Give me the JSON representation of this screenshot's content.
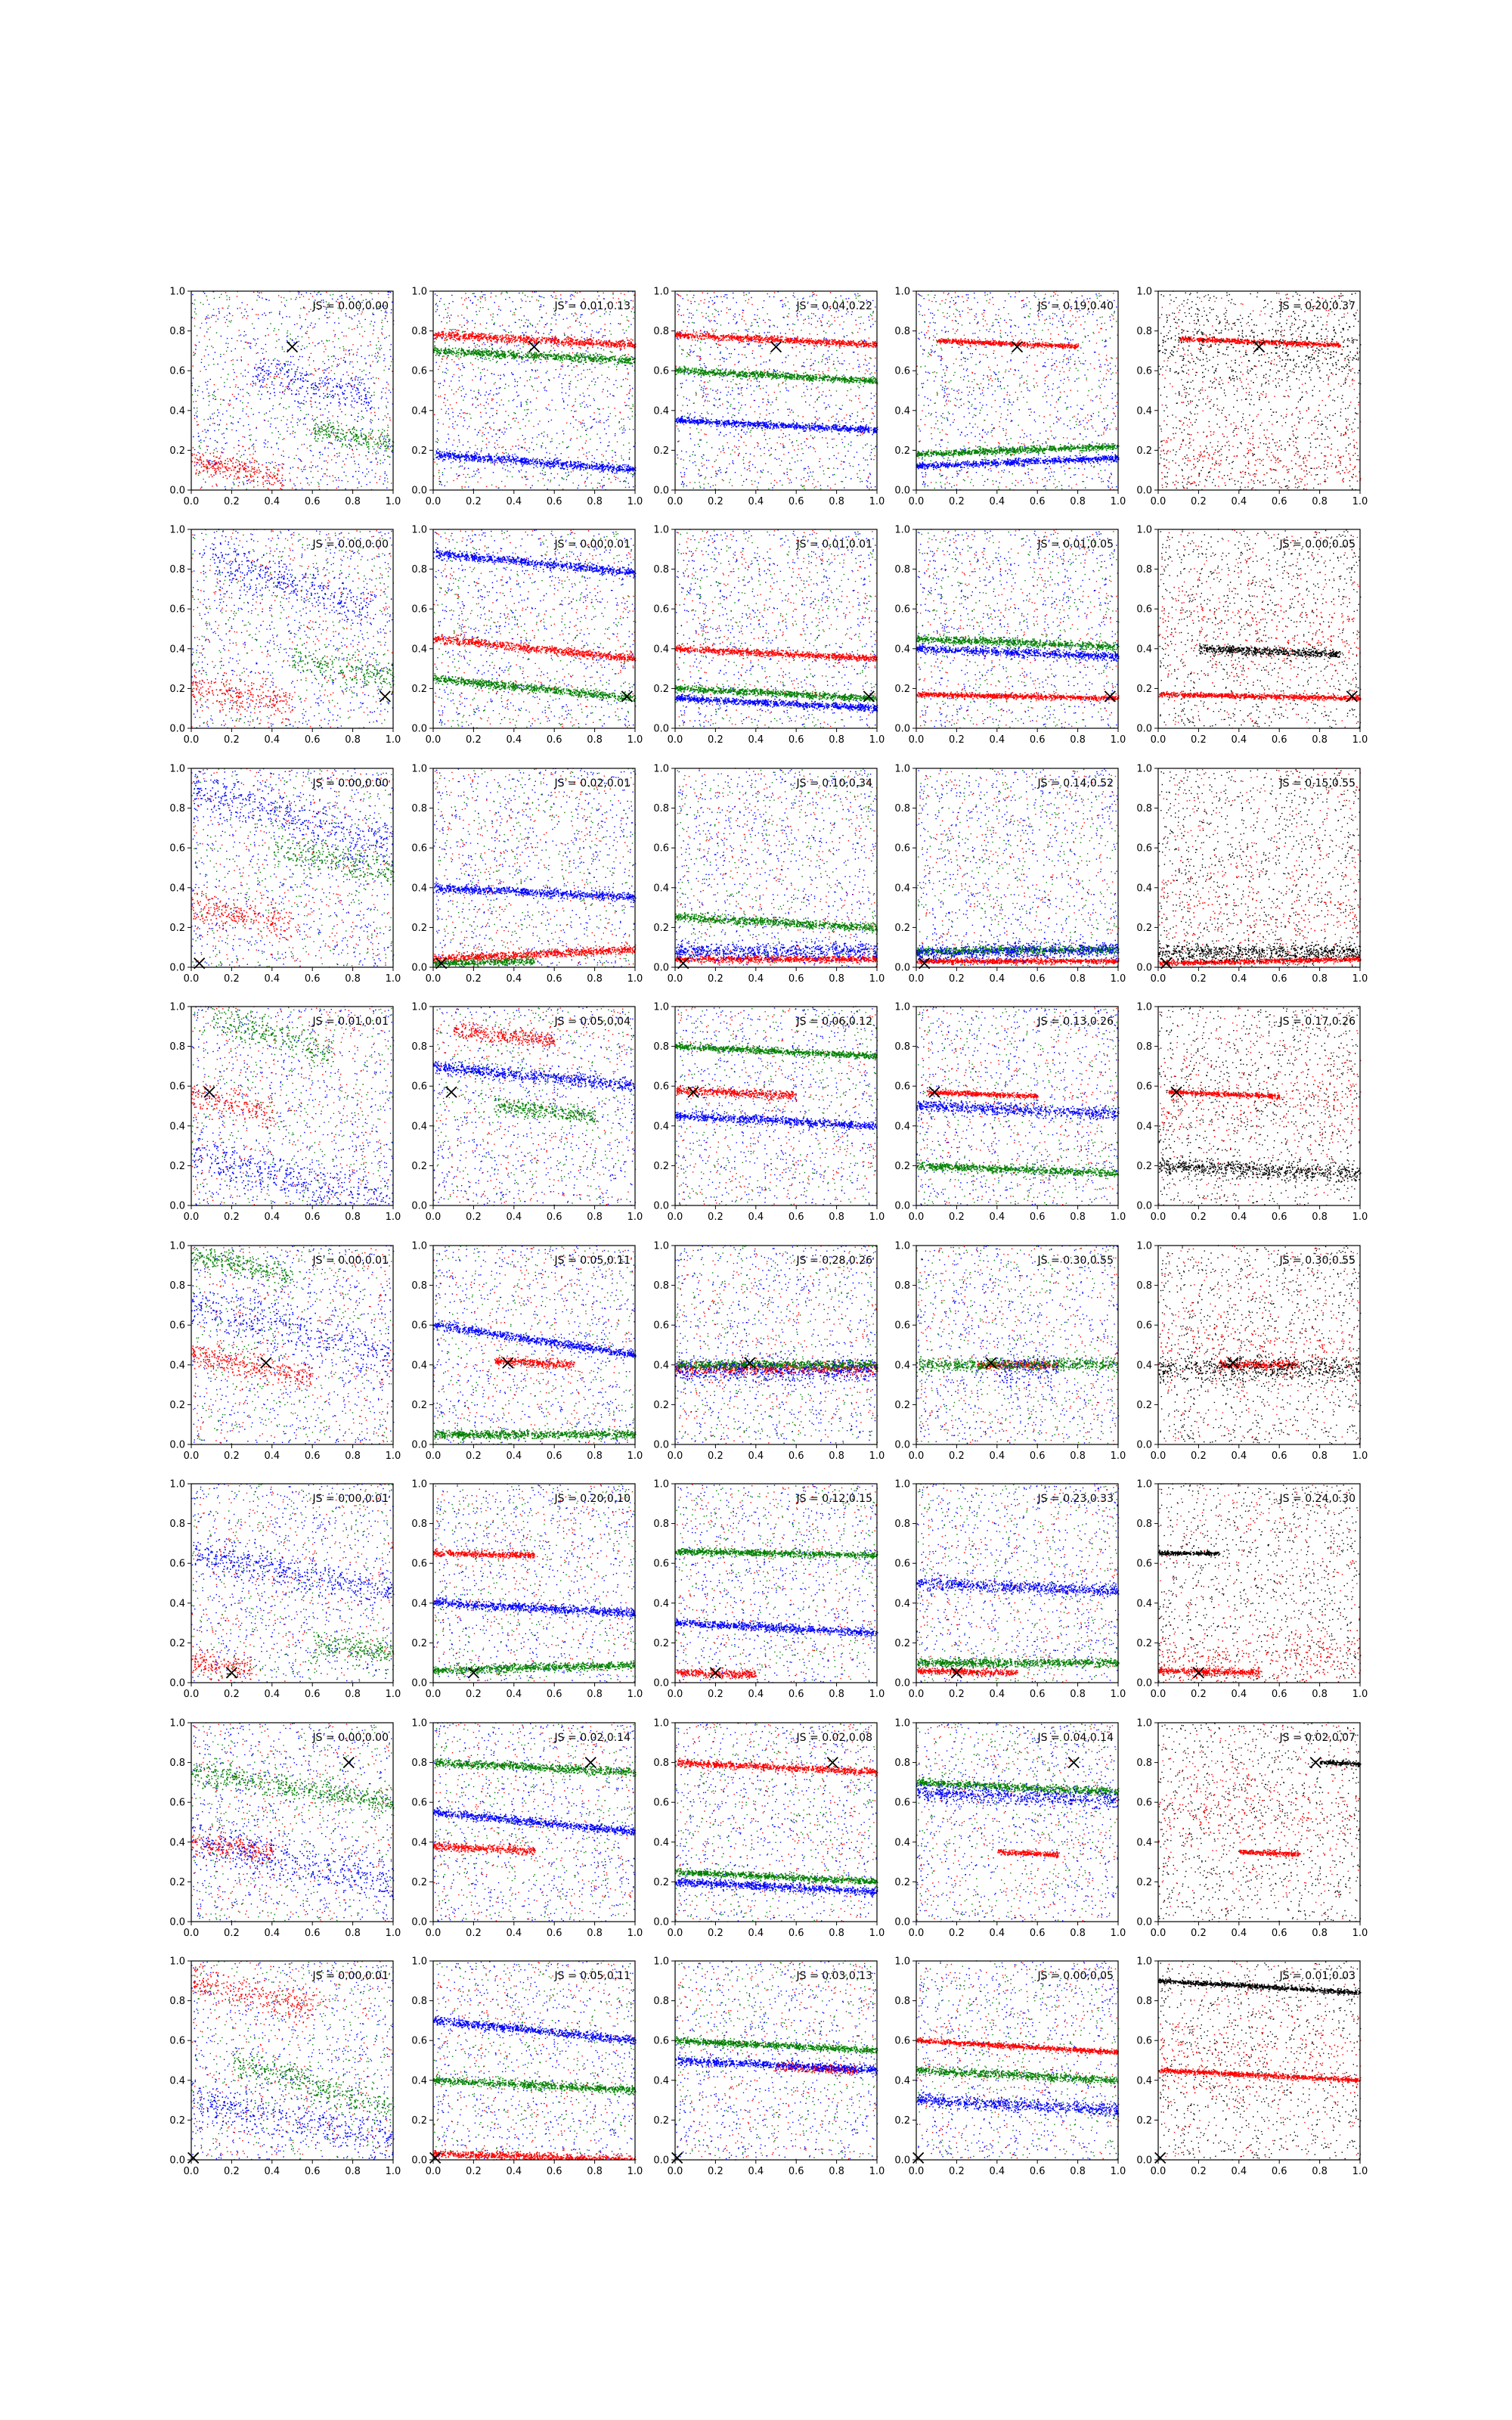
{
  "chart_data": {
    "type": "scatter",
    "layout": "grid",
    "rows": 8,
    "columns": 5,
    "colors": {
      "red": "#ff0000",
      "green": "#008000",
      "blue": "#0000ff",
      "black": "#000000"
    },
    "xlim": [
      0,
      1
    ],
    "ylim": [
      0,
      1
    ],
    "x_ticks": [
      "0.0",
      "0.2",
      "0.4",
      "0.6",
      "0.8",
      "1.0"
    ],
    "y_ticks": [
      "0.0",
      "0.2",
      "0.4",
      "0.6",
      "0.8",
      "1.0"
    ],
    "marker_symbol": "x",
    "rows_data": [
      {
        "marker": [
          0.5,
          0.72
        ],
        "js": [
          "JS = 0.00,0.00",
          "JS = 0.01,0.13",
          "JS = 0.04,0.22",
          "JS = 0.19,0.40",
          "JS = 0.20,0.37"
        ]
      },
      {
        "marker": [
          0.96,
          0.16
        ],
        "js": [
          "JS = 0.00,0.00",
          "JS = 0.00,0.01",
          "JS = 0.01,0.01",
          "JS = 0.01,0.05",
          "JS = 0.00,0.05"
        ]
      },
      {
        "marker": [
          0.04,
          0.02
        ],
        "js": [
          "JS = 0.00,0.00",
          "JS = 0.02,0.01",
          "JS = 0.10,0.34",
          "JS = 0.14,0.52",
          "JS = 0.15,0.55"
        ]
      },
      {
        "marker": [
          0.09,
          0.57
        ],
        "js": [
          "JS = 0.01,0.01",
          "JS = 0.05,0.04",
          "JS = 0.06,0.12",
          "JS = 0.13,0.26",
          "JS = 0.17,0.26"
        ]
      },
      {
        "marker": [
          0.37,
          0.41
        ],
        "js": [
          "JS = 0.00,0.01",
          "JS = 0.05,0.11",
          "JS = 0.28,0.26",
          "JS = 0.30,0.55",
          "JS = 0.30,0.55"
        ]
      },
      {
        "marker": [
          0.2,
          0.05
        ],
        "js": [
          "JS = 0.00,0.01",
          "JS = 0.20,0.10",
          "JS = 0.12,0.15",
          "JS = 0.23,0.33",
          "JS = 0.24,0.30"
        ]
      },
      {
        "marker": [
          0.78,
          0.8
        ],
        "js": [
          "JS = 0.00,0.00",
          "JS = 0.02,0.14",
          "JS = 0.02,0.08",
          "JS = 0.04,0.14",
          "JS = 0.02,0.07"
        ]
      },
      {
        "marker": [
          0.01,
          0.01
        ],
        "js": [
          "JS = 0.00,0.01",
          "JS = 0.05,0.11",
          "JS = 0.03,0.13",
          "JS = 0.00,0.05",
          "JS = 0.01,0.03"
        ]
      }
    ],
    "columns_data": [
      {
        "series": [
          "red",
          "green",
          "blue"
        ],
        "clusters": "diagonal"
      },
      {
        "series": [
          "red",
          "green",
          "blue"
        ],
        "clusters": "horizontal"
      },
      {
        "series": [
          "red",
          "green",
          "blue"
        ],
        "clusters": "horizontal"
      },
      {
        "series": [
          "red",
          "green",
          "blue"
        ],
        "clusters": "horizontal"
      },
      {
        "series": [
          "red",
          "black"
        ],
        "clusters": "horizontal"
      }
    ],
    "bands": [
      [
        [
          [
            0.0,
            0.15,
            0.45,
            -0.2,
            0.03
          ],
          [
            0.6,
            0.3,
            1.0,
            -0.15,
            0.03
          ],
          [
            0.3,
            0.6,
            0.9,
            -0.25,
            0.05
          ]
        ],
        [
          [
            0.0,
            0.78,
            1.0,
            -0.05,
            0.01
          ],
          [
            0.0,
            0.7,
            1.0,
            -0.05,
            0.01
          ],
          [
            0.0,
            0.18,
            1.0,
            -0.08,
            0.01
          ]
        ],
        [
          [
            0.0,
            0.78,
            1.0,
            -0.05,
            0.008
          ],
          [
            0.0,
            0.6,
            1.0,
            -0.05,
            0.008
          ],
          [
            0.0,
            0.35,
            1.0,
            -0.05,
            0.008
          ]
        ],
        [
          [
            0.1,
            0.75,
            0.8,
            -0.04,
            0.006
          ],
          [
            0.0,
            0.18,
            1.0,
            0.04,
            0.008
          ],
          [
            0.0,
            0.12,
            1.0,
            0.04,
            0.008
          ]
        ],
        [
          [
            0.1,
            0.76,
            0.9,
            -0.04,
            0.006
          ],
          [
            0.0,
            0.72,
            1.0,
            0.0,
            0.08
          ],
          [
            0.0,
            0.15,
            1.0,
            0.0,
            0.1
          ]
        ]
      ],
      [
        [
          [
            0.0,
            0.2,
            0.5,
            -0.15,
            0.04
          ],
          [
            0.5,
            0.35,
            1.0,
            -0.2,
            0.04
          ],
          [
            0.1,
            0.85,
            0.9,
            -0.3,
            0.05
          ]
        ],
        [
          [
            0.0,
            0.45,
            1.0,
            -0.1,
            0.01
          ],
          [
            0.0,
            0.25,
            1.0,
            -0.1,
            0.01
          ],
          [
            0.0,
            0.88,
            1.0,
            -0.1,
            0.01
          ]
        ],
        [
          [
            0.0,
            0.4,
            1.0,
            -0.05,
            0.008
          ],
          [
            0.0,
            0.2,
            1.0,
            -0.05,
            0.008
          ],
          [
            0.0,
            0.15,
            1.0,
            -0.05,
            0.008
          ]
        ],
        [
          [
            0.0,
            0.17,
            1.0,
            -0.02,
            0.006
          ],
          [
            0.0,
            0.45,
            1.0,
            -0.04,
            0.01
          ],
          [
            0.0,
            0.4,
            1.0,
            -0.04,
            0.01
          ]
        ],
        [
          [
            0.0,
            0.17,
            1.0,
            -0.02,
            0.006
          ],
          [
            0.2,
            0.4,
            0.9,
            -0.04,
            0.01
          ],
          [
            0.0,
            0.5,
            1.0,
            0.0,
            0.12
          ]
        ]
      ],
      [
        [
          [
            0.0,
            0.3,
            0.5,
            -0.15,
            0.04
          ],
          [
            0.4,
            0.6,
            1.0,
            -0.2,
            0.04
          ],
          [
            0.0,
            0.9,
            1.0,
            -0.3,
            0.05
          ]
        ],
        [
          [
            0.0,
            0.04,
            1.0,
            0.05,
            0.01
          ],
          [
            0.0,
            0.02,
            0.5,
            0.02,
            0.008
          ],
          [
            0.0,
            0.4,
            1.0,
            -0.05,
            0.01
          ]
        ],
        [
          [
            0.0,
            0.04,
            1.0,
            0.0,
            0.008
          ],
          [
            0.0,
            0.25,
            1.0,
            -0.05,
            0.01
          ],
          [
            0.0,
            0.08,
            1.0,
            0.0,
            0.02
          ]
        ],
        [
          [
            0.0,
            0.03,
            1.0,
            0.0,
            0.006
          ],
          [
            0.0,
            0.08,
            1.0,
            0.01,
            0.01
          ],
          [
            0.0,
            0.07,
            1.0,
            0.02,
            0.02
          ]
        ],
        [
          [
            0.0,
            0.02,
            1.0,
            0.02,
            0.006
          ],
          [
            0.0,
            0.07,
            1.0,
            0.01,
            0.02
          ],
          [
            0.0,
            0.3,
            1.0,
            0.0,
            0.12
          ]
        ]
      ],
      [
        [
          [
            0.0,
            0.55,
            0.4,
            -0.2,
            0.04
          ],
          [
            0.1,
            0.95,
            0.7,
            -0.3,
            0.04
          ],
          [
            0.0,
            0.25,
            1.0,
            -0.25,
            0.05
          ]
        ],
        [
          [
            0.1,
            0.88,
            0.6,
            -0.1,
            0.02
          ],
          [
            0.3,
            0.5,
            0.8,
            -0.1,
            0.02
          ],
          [
            0.0,
            0.7,
            1.0,
            -0.1,
            0.015
          ]
        ],
        [
          [
            0.0,
            0.58,
            0.6,
            -0.05,
            0.01
          ],
          [
            0.0,
            0.8,
            1.0,
            -0.05,
            0.008
          ],
          [
            0.0,
            0.45,
            1.0,
            -0.05,
            0.01
          ]
        ],
        [
          [
            0.05,
            0.57,
            0.6,
            -0.04,
            0.006
          ],
          [
            0.0,
            0.2,
            1.0,
            -0.04,
            0.01
          ],
          [
            0.0,
            0.5,
            1.0,
            -0.04,
            0.015
          ]
        ],
        [
          [
            0.05,
            0.57,
            0.6,
            -0.04,
            0.006
          ],
          [
            0.0,
            0.2,
            1.0,
            -0.04,
            0.02
          ],
          [
            0.0,
            0.5,
            1.0,
            0.0,
            0.12
          ]
        ]
      ],
      [
        [
          [
            0.0,
            0.45,
            0.6,
            -0.2,
            0.03
          ],
          [
            0.0,
            0.95,
            0.5,
            -0.2,
            0.03
          ],
          [
            0.0,
            0.7,
            1.0,
            -0.25,
            0.06
          ]
        ],
        [
          [
            0.3,
            0.42,
            0.7,
            -0.05,
            0.01
          ],
          [
            0.0,
            0.05,
            1.0,
            0.0,
            0.01
          ],
          [
            0.0,
            0.6,
            1.0,
            -0.15,
            0.01
          ]
        ],
        [
          [
            0.0,
            0.38,
            1.0,
            0.0,
            0.015
          ],
          [
            0.0,
            0.4,
            1.0,
            0.0,
            0.01
          ],
          [
            0.0,
            0.37,
            1.0,
            0.0,
            0.03
          ]
        ],
        [
          [
            0.3,
            0.4,
            0.7,
            0.0,
            0.01
          ],
          [
            0.0,
            0.4,
            1.0,
            0.0,
            0.015
          ],
          [
            0.4,
            0.37,
            0.7,
            0.0,
            0.04
          ]
        ],
        [
          [
            0.3,
            0.4,
            0.7,
            0.0,
            0.01
          ],
          [
            0.0,
            0.38,
            1.0,
            0.0,
            0.03
          ],
          [
            0.0,
            0.5,
            1.0,
            0.0,
            0.12
          ]
        ]
      ],
      [
        [
          [
            0.0,
            0.1,
            0.3,
            -0.1,
            0.03
          ],
          [
            0.6,
            0.2,
            1.0,
            -0.15,
            0.03
          ],
          [
            0.0,
            0.65,
            1.0,
            -0.2,
            0.04
          ]
        ],
        [
          [
            0.0,
            0.65,
            0.5,
            -0.02,
            0.008
          ],
          [
            0.0,
            0.06,
            1.0,
            0.03,
            0.01
          ],
          [
            0.0,
            0.4,
            1.0,
            -0.05,
            0.01
          ]
        ],
        [
          [
            0.0,
            0.05,
            0.4,
            -0.03,
            0.01
          ],
          [
            0.0,
            0.66,
            1.0,
            -0.02,
            0.008
          ],
          [
            0.0,
            0.3,
            1.0,
            -0.05,
            0.01
          ]
        ],
        [
          [
            0.0,
            0.06,
            0.5,
            -0.02,
            0.008
          ],
          [
            0.0,
            0.1,
            1.0,
            0.0,
            0.01
          ],
          [
            0.0,
            0.5,
            1.0,
            -0.04,
            0.015
          ]
        ],
        [
          [
            0.0,
            0.06,
            0.5,
            -0.02,
            0.008
          ],
          [
            0.0,
            0.65,
            0.3,
            0.0,
            0.005
          ],
          [
            0.0,
            0.12,
            1.0,
            0.0,
            0.08
          ]
        ]
      ],
      [
        [
          [
            0.0,
            0.4,
            0.4,
            -0.15,
            0.03
          ],
          [
            0.0,
            0.75,
            1.0,
            -0.15,
            0.03
          ],
          [
            0.0,
            0.4,
            1.0,
            -0.2,
            0.05
          ]
        ],
        [
          [
            0.0,
            0.38,
            0.5,
            -0.05,
            0.01
          ],
          [
            0.0,
            0.8,
            1.0,
            -0.05,
            0.01
          ],
          [
            0.0,
            0.55,
            1.0,
            -0.1,
            0.01
          ]
        ],
        [
          [
            0.0,
            0.8,
            1.0,
            -0.05,
            0.008
          ],
          [
            0.0,
            0.25,
            1.0,
            -0.05,
            0.008
          ],
          [
            0.0,
            0.2,
            1.0,
            -0.05,
            0.01
          ]
        ],
        [
          [
            0.4,
            0.35,
            0.7,
            -0.04,
            0.006
          ],
          [
            0.0,
            0.7,
            1.0,
            -0.05,
            0.01
          ],
          [
            0.0,
            0.65,
            1.0,
            -0.04,
            0.02
          ]
        ],
        [
          [
            0.4,
            0.35,
            0.7,
            -0.04,
            0.006
          ],
          [
            0.8,
            0.8,
            1.0,
            -0.04,
            0.006
          ],
          [
            0.0,
            0.55,
            1.0,
            0.0,
            0.12
          ]
        ]
      ],
      [
        [
          [
            0.0,
            0.9,
            0.6,
            -0.25,
            0.04
          ],
          [
            0.2,
            0.5,
            1.0,
            -0.3,
            0.04
          ],
          [
            0.0,
            0.3,
            1.0,
            -0.2,
            0.05
          ]
        ],
        [
          [
            0.0,
            0.03,
            1.0,
            -0.03,
            0.01
          ],
          [
            0.0,
            0.4,
            1.0,
            -0.05,
            0.01
          ],
          [
            0.0,
            0.7,
            1.0,
            -0.1,
            0.01
          ]
        ],
        [
          [
            0.5,
            0.47,
            0.9,
            -0.05,
            0.01
          ],
          [
            0.0,
            0.6,
            1.0,
            -0.05,
            0.008
          ],
          [
            0.0,
            0.5,
            1.0,
            -0.05,
            0.01
          ]
        ],
        [
          [
            0.0,
            0.6,
            1.0,
            -0.06,
            0.006
          ],
          [
            0.0,
            0.45,
            1.0,
            -0.05,
            0.01
          ],
          [
            0.0,
            0.3,
            1.0,
            -0.05,
            0.015
          ]
        ],
        [
          [
            0.0,
            0.45,
            1.0,
            -0.05,
            0.006
          ],
          [
            0.0,
            0.9,
            1.0,
            -0.06,
            0.006
          ],
          [
            0.0,
            0.5,
            1.0,
            0.0,
            0.12
          ]
        ]
      ]
    ]
  }
}
